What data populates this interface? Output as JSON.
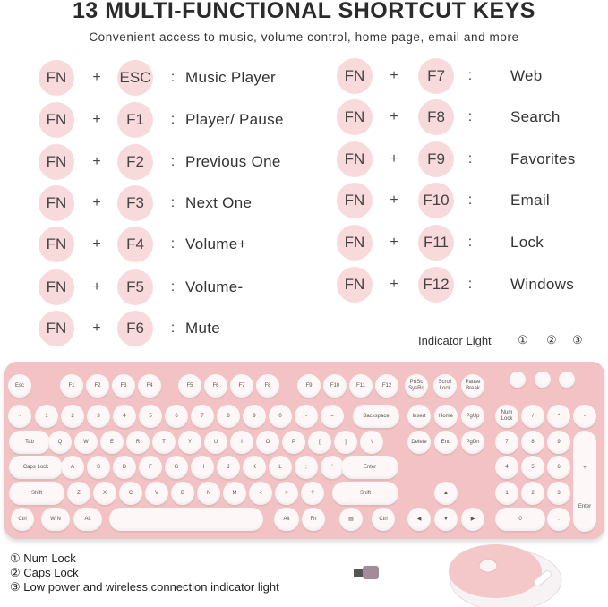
{
  "header": {
    "title": "13 MULTI-FUNCTIONAL SHORTCUT KEYS",
    "subtitle": "Convenient access to music, volume control, home page, email and more"
  },
  "colors": {
    "circle": "#f8dadd",
    "keyboard_body": "#f2c2c4",
    "keycap": "#fdf7f7",
    "mouse_top": "#f4c7c9"
  },
  "plus": "+",
  "colon": ":",
  "shortcuts_left": [
    {
      "mod": "FN",
      "key": "ESC",
      "label": "Music Player"
    },
    {
      "mod": "FN",
      "key": "F1",
      "label": "Player/ Pause"
    },
    {
      "mod": "FN",
      "key": "F2",
      "label": "Previous One"
    },
    {
      "mod": "FN",
      "key": "F3",
      "label": "Next One"
    },
    {
      "mod": "FN",
      "key": "F4",
      "label": "Volume+"
    },
    {
      "mod": "FN",
      "key": "F5",
      "label": "Volume-"
    },
    {
      "mod": "FN",
      "key": "F6",
      "label": "Mute"
    }
  ],
  "shortcuts_right": [
    {
      "mod": "FN",
      "key": "F7",
      "label": "Web"
    },
    {
      "mod": "FN",
      "key": "F8",
      "label": "Search"
    },
    {
      "mod": "FN",
      "key": "F9",
      "label": "Favorites"
    },
    {
      "mod": "FN",
      "key": "F10",
      "label": "Email"
    },
    {
      "mod": "FN",
      "key": "F11",
      "label": "Lock"
    },
    {
      "mod": "FN",
      "key": "F12",
      "label": "Windows"
    }
  ],
  "indicator": {
    "label": "Indicator Light",
    "numbers": [
      "①",
      "②",
      "③"
    ]
  },
  "keyboard_keys": [
    "Esc",
    "F1",
    "F2",
    "F3",
    "F4",
    "F5",
    "F6",
    "F7",
    "F8",
    "F9",
    "F10",
    "F11",
    "F12",
    "PrtSc SysRq",
    "Scroll Lock",
    "Pause Break",
    "~",
    "1",
    "2",
    "3",
    "4",
    "5",
    "6",
    "7",
    "8",
    "9",
    "0",
    "-",
    "=",
    "Backspace",
    "Insert",
    "Home",
    "PgUp",
    "Num Lock",
    "/",
    "*",
    "-",
    "Tab",
    "Q",
    "W",
    "E",
    "R",
    "T",
    "Y",
    "U",
    "I",
    "O",
    "P",
    "[",
    "]",
    "\\",
    "Delete",
    "End",
    "PgDn",
    "7",
    "8",
    "9",
    "+",
    "Caps Lock",
    "A",
    "S",
    "D",
    "F",
    "G",
    "H",
    "J",
    "K",
    "L",
    ";",
    "'",
    "Enter",
    "4",
    "5",
    "6",
    "Shift",
    "Z",
    "X",
    "C",
    "V",
    "B",
    "N",
    "M",
    "<",
    ">",
    "?",
    "Shift",
    "▲",
    "1",
    "2",
    "3",
    "Enter",
    "Ctrl",
    "WIN",
    "Alt",
    "",
    "Alt",
    "Fn",
    "▤",
    "Ctrl",
    "◀",
    "▼",
    "▶",
    "0",
    "."
  ],
  "notes": [
    "① Num Lock",
    "② Caps Lock",
    "③ Low power and wireless connection indicator light"
  ]
}
